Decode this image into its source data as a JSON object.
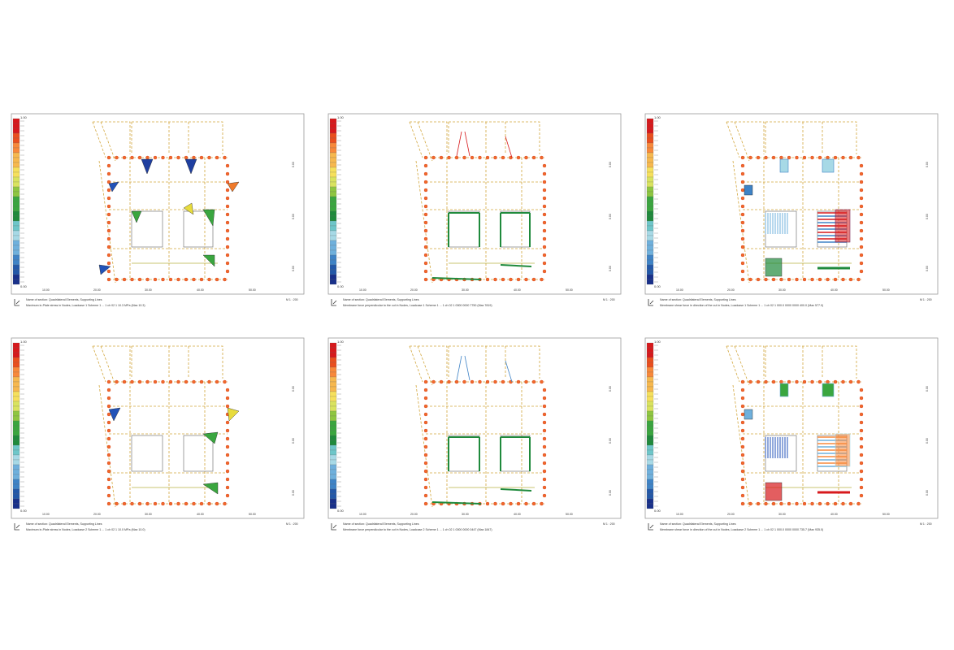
{
  "panels": [
    {
      "scale_top": "1.00",
      "scale_bottom": "0.00",
      "sheet": "M 1 : 200",
      "caption_line1": "Name of section: Quadrilateral Elements, Supporting Lines",
      "caption_line2": "Maximum in-Plate stress in Nodes, Loadcase 1 Scheme 1 ... 1 ch 02 1 10.3 MPa (Max 10.3)",
      "axis_x": [
        "10.00",
        "20.00",
        "30.00",
        "40.00",
        "50.00"
      ],
      "axis_y": [
        "0.00",
        "0.00",
        "0.00"
      ],
      "color_ramp": [
        "#d7191c",
        "#ea4e1e",
        "#f8883a",
        "#f7b84e",
        "#f6e05c",
        "#d9e35e",
        "#8ec640",
        "#3aa63f",
        "#1f8a3c",
        "#6ec6c9",
        "#a7d9e6",
        "#6fb0dc",
        "#3f83c6",
        "#2358a8",
        "#18308a"
      ]
    },
    {
      "scale_top": "1.00",
      "scale_bottom": "0.00",
      "sheet": "M 1 : 200",
      "caption_line1": "Name of section: Quadrilateral Elements, Supporting Lines",
      "caption_line2": "Membrane force perpendicular to the cut in Nodes, Loadcase 1 Scheme 1 ... 1 ch 02 1 0000 0000 7750 (Max 7819)",
      "axis_x": [
        "10.00",
        "20.00",
        "30.00",
        "40.00",
        "50.00"
      ],
      "axis_y": [
        "0.00",
        "0.00",
        "0.00"
      ],
      "color_ramp": [
        "#d7191c",
        "#ea4e1e",
        "#f8883a",
        "#f7b84e",
        "#f6e05c",
        "#d9e35e",
        "#8ec640",
        "#3aa63f",
        "#1f8a3c",
        "#6ec6c9",
        "#a7d9e6",
        "#6fb0dc",
        "#3f83c6",
        "#2358a8",
        "#18308a"
      ]
    },
    {
      "scale_top": "1.00",
      "scale_bottom": "0.00",
      "sheet": "M 1 : 200",
      "caption_line1": "Name of section: Quadrilateral Elements, Supporting Lines",
      "caption_line2": "Membrane shear force in direction of the cut in Nodes, Loadcase 1 Scheme 1 ... 1 ch 02 1 000.0 0000 0000 400.0 (Max 577.0)",
      "axis_x": [
        "10.00",
        "20.00",
        "30.00",
        "40.00",
        "50.00"
      ],
      "axis_y": [
        "0.00",
        "0.00",
        "0.00"
      ],
      "color_ramp": [
        "#d7191c",
        "#ea4e1e",
        "#f8883a",
        "#f7b84e",
        "#f6e05c",
        "#d9e35e",
        "#8ec640",
        "#3aa63f",
        "#1f8a3c",
        "#6ec6c9",
        "#a7d9e6",
        "#6fb0dc",
        "#3f83c6",
        "#2358a8",
        "#18308a"
      ]
    },
    {
      "scale_top": "1.00",
      "scale_bottom": "0.00",
      "sheet": "M 1 : 200",
      "caption_line1": "Name of section: Quadrilateral Elements, Supporting Lines",
      "caption_line2": "Maximum in-Plate stress in Nodes, Loadcase 2 Scheme 1 ... 1 ch 02 1 10.0 MPa (Max 10.0)",
      "axis_x": [
        "10.00",
        "20.00",
        "30.00",
        "40.00",
        "50.00"
      ],
      "axis_y": [
        "0.00",
        "0.00",
        "0.00"
      ],
      "color_ramp": [
        "#d7191c",
        "#ea4e1e",
        "#f8883a",
        "#f7b84e",
        "#f6e05c",
        "#d9e35e",
        "#8ec640",
        "#3aa63f",
        "#1f8a3c",
        "#6ec6c9",
        "#a7d9e6",
        "#6fb0dc",
        "#3f83c6",
        "#2358a8",
        "#18308a"
      ]
    },
    {
      "scale_top": "1.00",
      "scale_bottom": "0.00",
      "sheet": "M 1 : 200",
      "caption_line1": "Name of section: Quadrilateral Elements, Supporting Lines",
      "caption_line2": "Membrane force perpendicular to the cut in Nodes, Loadcase 2 Scheme 1 ... 1 ch 02 1 0000 0000 0447 (Max 1847)",
      "axis_x": [
        "10.00",
        "20.00",
        "30.00",
        "40.00",
        "50.00"
      ],
      "axis_y": [
        "0.00",
        "0.00",
        "0.00"
      ],
      "color_ramp": [
        "#d7191c",
        "#ea4e1e",
        "#f8883a",
        "#f7b84e",
        "#f6e05c",
        "#d9e35e",
        "#8ec640",
        "#3aa63f",
        "#1f8a3c",
        "#6ec6c9",
        "#a7d9e6",
        "#6fb0dc",
        "#3f83c6",
        "#2358a8",
        "#18308a"
      ]
    },
    {
      "scale_top": "1.00",
      "scale_bottom": "0.00",
      "sheet": "M 1 : 200",
      "caption_line1": "Name of section: Quadrilateral Elements, Supporting Lines",
      "caption_line2": "Membrane shear force in direction of the cut in Nodes, Loadcase 2 Scheme 1 ... 1 ch 02 1 000.0 0000 0000 735.7 (Max 935.0)",
      "axis_x": [
        "10.00",
        "20.00",
        "30.00",
        "40.00",
        "50.00"
      ],
      "axis_y": [
        "0.00",
        "0.00",
        "0.00"
      ],
      "color_ramp": [
        "#d7191c",
        "#ea4e1e",
        "#f8883a",
        "#f7b84e",
        "#f6e05c",
        "#d9e35e",
        "#8ec640",
        "#3aa63f",
        "#1f8a3c",
        "#6ec6c9",
        "#a7d9e6",
        "#6fb0dc",
        "#3f83c6",
        "#2358a8",
        "#18308a"
      ]
    }
  ]
}
